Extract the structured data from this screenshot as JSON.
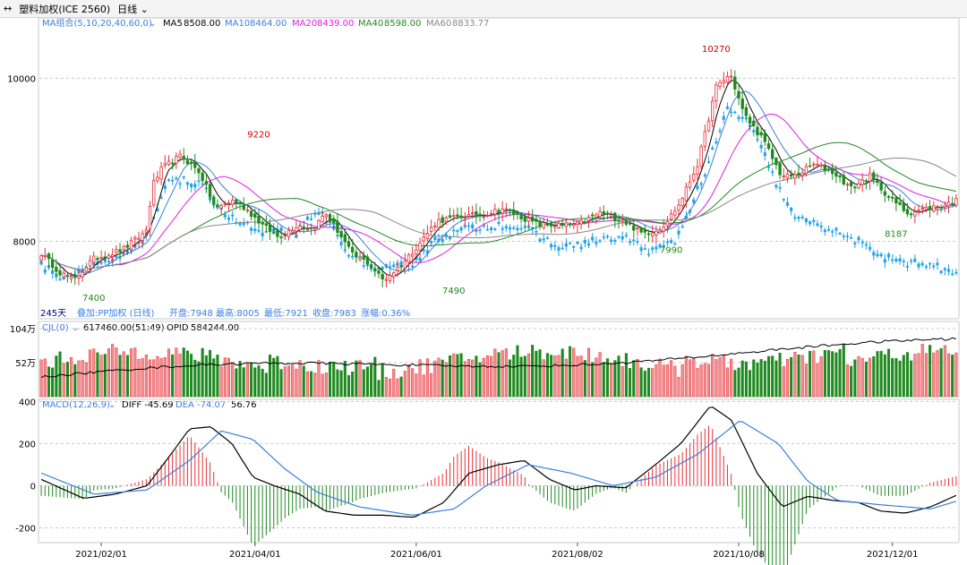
{
  "window": {
    "icon": "split-window-icon",
    "title": "塑料加权(ICE 2560)",
    "period": "日线"
  },
  "colors": {
    "up": "#e8303a",
    "down": "#1f8a1f",
    "projection": "#1aa0e8",
    "ma5": "#000000",
    "ma10": "#3b7fe0",
    "ma20": "#e020e0",
    "ma40": "#1f8a1f",
    "ma60": "#888888",
    "grid": "#c8c8c8",
    "axis": "#555555"
  },
  "chart_data": [
    {
      "type": "candlestick",
      "panel": "price",
      "title": "塑料加权(ICE 2560)",
      "legend": {
        "group_label": "MA组合(5,10,20,40,60,0)",
        "items": [
          {
            "name": "MA5",
            "value": "8508.00"
          },
          {
            "name": "MA10",
            "value": "8464.00"
          },
          {
            "name": "MA20",
            "value": "8439.00"
          },
          {
            "name": "MA40",
            "value": "8598.00"
          },
          {
            "name": "MA60",
            "value": "8833.77"
          }
        ]
      },
      "info_bar": {
        "count": "245天",
        "overlay": "叠加:PP加权 (日线)",
        "open": "开盘:7948",
        "high": "最高:8005",
        "low": "最低:7921",
        "close": "收盘:7983",
        "change": "涨幅:0.36%"
      },
      "y_ticks": [
        10000,
        8000
      ],
      "ylim": [
        7050,
        10740
      ],
      "x_ticks": [
        "2021/02/01",
        "2021/04/01",
        "2021/06/01",
        "2021/08/02",
        "2021/10/08",
        "2021/12/01"
      ],
      "annotations": [
        {
          "label": "10270",
          "kind": "high"
        },
        {
          "label": "9220",
          "kind": "high"
        },
        {
          "label": "7400",
          "kind": "low"
        },
        {
          "label": "7490",
          "kind": "low"
        },
        {
          "label": "7990",
          "kind": "low"
        },
        {
          "label": "8187",
          "kind": "low"
        }
      ],
      "anchors_main": [
        [
          0,
          7850
        ],
        [
          8,
          7620
        ],
        [
          14,
          7520
        ],
        [
          22,
          7780
        ],
        [
          35,
          7900
        ],
        [
          45,
          8120
        ],
        [
          48,
          8700
        ],
        [
          52,
          8900
        ],
        [
          60,
          9050
        ],
        [
          68,
          8850
        ],
        [
          75,
          8400
        ],
        [
          82,
          8500
        ],
        [
          88,
          8400
        ],
        [
          95,
          8200
        ],
        [
          102,
          8050
        ],
        [
          110,
          8200
        ],
        [
          117,
          8150
        ],
        [
          122,
          8350
        ],
        [
          128,
          8100
        ],
        [
          134,
          7820
        ],
        [
          140,
          7750
        ],
        [
          147,
          7520
        ],
        [
          155,
          7720
        ],
        [
          162,
          7960
        ],
        [
          170,
          8250
        ],
        [
          180,
          8300
        ],
        [
          190,
          8330
        ],
        [
          198,
          8400
        ],
        [
          206,
          8300
        ],
        [
          214,
          8200
        ],
        [
          222,
          8200
        ],
        [
          230,
          8200
        ],
        [
          240,
          8350
        ],
        [
          250,
          8250
        ],
        [
          258,
          8100
        ],
        [
          266,
          8150
        ],
        [
          274,
          8450
        ],
        [
          282,
          8950
        ],
        [
          290,
          9900
        ],
        [
          296,
          10050
        ],
        [
          302,
          9550
        ],
        [
          310,
          9250
        ],
        [
          318,
          8800
        ],
        [
          324,
          8800
        ],
        [
          332,
          8950
        ],
        [
          340,
          8850
        ],
        [
          348,
          8650
        ],
        [
          356,
          8800
        ],
        [
          364,
          8550
        ],
        [
          372,
          8350
        ],
        [
          380,
          8400
        ],
        [
          388,
          8450
        ],
        [
          393,
          8500
        ]
      ],
      "anchors_projection": [
        [
          0,
          7680
        ],
        [
          10,
          7550
        ],
        [
          20,
          7700
        ],
        [
          35,
          7800
        ],
        [
          45,
          8050
        ],
        [
          55,
          8780
        ],
        [
          68,
          8700
        ],
        [
          80,
          8300
        ],
        [
          95,
          8100
        ],
        [
          108,
          8100
        ],
        [
          120,
          8350
        ],
        [
          132,
          7850
        ],
        [
          145,
          7620
        ],
        [
          158,
          7700
        ],
        [
          170,
          8050
        ],
        [
          182,
          8150
        ],
        [
          195,
          8200
        ],
        [
          208,
          8150
        ],
        [
          222,
          7920
        ],
        [
          236,
          8000
        ],
        [
          250,
          8050
        ],
        [
          262,
          7860
        ],
        [
          272,
          8000
        ],
        [
          284,
          8800
        ],
        [
          294,
          9600
        ],
        [
          302,
          9500
        ],
        [
          312,
          8900
        ],
        [
          322,
          8300
        ],
        [
          334,
          8200
        ],
        [
          346,
          8050
        ],
        [
          356,
          7880
        ],
        [
          368,
          7750
        ],
        [
          380,
          7700
        ],
        [
          392,
          7610
        ]
      ]
    },
    {
      "type": "bar",
      "panel": "volume",
      "legend": {
        "label": "CJL(0)",
        "value": "617460.00(51:49)",
        "oi_label": "OPID",
        "oi_value": "584244.00"
      },
      "y_ticks": [
        {
          "value": 104,
          "label": "104万"
        },
        {
          "value": 52,
          "label": "52万"
        }
      ],
      "ylim": [
        0,
        115
      ]
    },
    {
      "type": "line",
      "panel": "macd",
      "legend": {
        "label": "MACD(12,26,9)",
        "diff": "DIFF -45.69",
        "dea": "DEA -74.07",
        "macd": "56.76"
      },
      "y_ticks": [
        400,
        200,
        0,
        -200
      ],
      "ylim": [
        -270,
        410
      ],
      "diff_anchors": [
        [
          0,
          30
        ],
        [
          20,
          -60
        ],
        [
          35,
          -40
        ],
        [
          50,
          0
        ],
        [
          62,
          160
        ],
        [
          70,
          270
        ],
        [
          80,
          280
        ],
        [
          90,
          200
        ],
        [
          100,
          40
        ],
        [
          110,
          0
        ],
        [
          122,
          -40
        ],
        [
          134,
          -120
        ],
        [
          148,
          -140
        ],
        [
          162,
          -140
        ],
        [
          176,
          -150
        ],
        [
          190,
          -80
        ],
        [
          202,
          60
        ],
        [
          216,
          100
        ],
        [
          228,
          120
        ],
        [
          240,
          30
        ],
        [
          252,
          -20
        ],
        [
          262,
          0
        ],
        [
          276,
          -10
        ],
        [
          290,
          100
        ],
        [
          302,
          200
        ],
        [
          316,
          380
        ],
        [
          326,
          310
        ],
        [
          338,
          60
        ],
        [
          350,
          -100
        ],
        [
          362,
          -50
        ],
        [
          374,
          -70
        ],
        [
          386,
          -80
        ],
        [
          396,
          -120
        ],
        [
          408,
          -130
        ],
        [
          420,
          -100
        ],
        [
          432,
          -46
        ]
      ],
      "dea_anchors": [
        [
          0,
          60
        ],
        [
          25,
          -40
        ],
        [
          50,
          -20
        ],
        [
          70,
          120
        ],
        [
          85,
          260
        ],
        [
          100,
          220
        ],
        [
          115,
          80
        ],
        [
          130,
          -30
        ],
        [
          150,
          -100
        ],
        [
          175,
          -140
        ],
        [
          195,
          -110
        ],
        [
          210,
          0
        ],
        [
          230,
          100
        ],
        [
          250,
          60
        ],
        [
          270,
          0
        ],
        [
          290,
          40
        ],
        [
          310,
          150
        ],
        [
          330,
          310
        ],
        [
          348,
          200
        ],
        [
          362,
          20
        ],
        [
          376,
          -70
        ],
        [
          396,
          -90
        ],
        [
          420,
          -110
        ],
        [
          432,
          -74
        ]
      ]
    }
  ]
}
